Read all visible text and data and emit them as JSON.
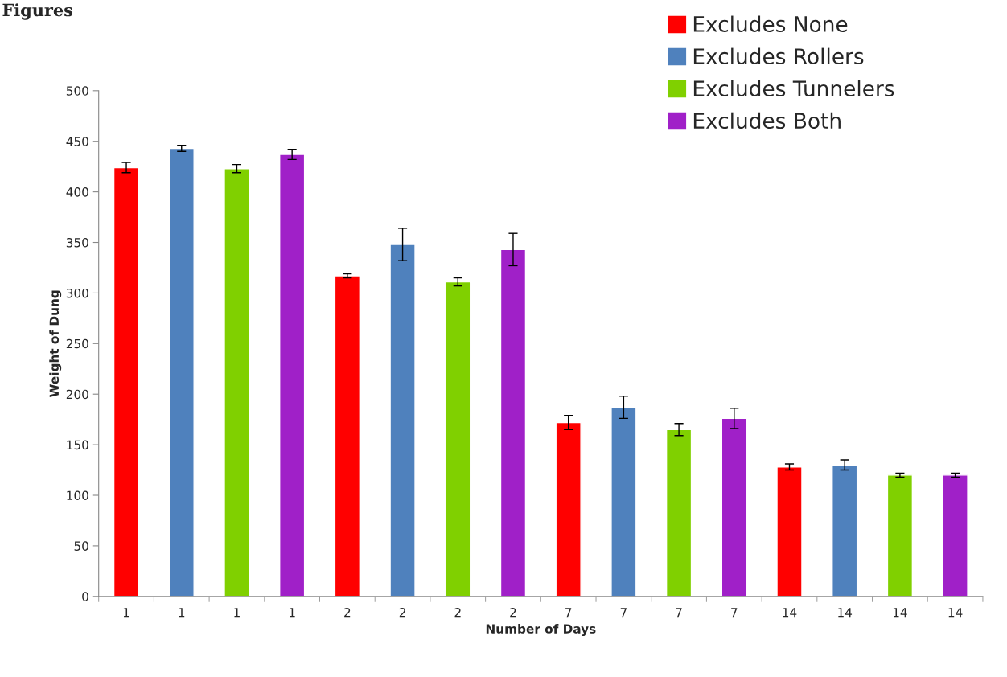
{
  "chart_data": {
    "type": "bar",
    "categories": [
      "1",
      "1",
      "1",
      "1",
      "2",
      "2",
      "2",
      "2",
      "7",
      "7",
      "7",
      "7",
      "14",
      "14",
      "14",
      "14"
    ],
    "xlabel": "Number of Days",
    "ylabel": "Weight of Dung",
    "annotations": [
      "Figures"
    ],
    "series": [
      {
        "name": "Excludes None",
        "color": "#ff0000",
        "values": [
          424,
          null,
          null,
          null,
          317,
          null,
          null,
          null,
          172,
          null,
          null,
          null,
          128,
          null,
          null,
          null
        ],
        "errors": [
          5,
          null,
          null,
          null,
          2,
          null,
          null,
          null,
          7,
          null,
          null,
          null,
          3,
          null,
          null,
          null
        ]
      },
      {
        "name": "Excludes Rollers",
        "color": "#4f81bd",
        "values": [
          null,
          443,
          null,
          null,
          null,
          348,
          null,
          null,
          null,
          187,
          null,
          null,
          null,
          130,
          null,
          null
        ],
        "errors": [
          null,
          3,
          null,
          null,
          null,
          16,
          null,
          null,
          null,
          11,
          null,
          null,
          null,
          5,
          null,
          null
        ]
      },
      {
        "name": "Excludes Tunnelers",
        "color": "#80d000",
        "values": [
          null,
          null,
          423,
          null,
          null,
          null,
          311,
          null,
          null,
          null,
          165,
          null,
          null,
          null,
          120,
          null
        ],
        "errors": [
          null,
          null,
          4,
          null,
          null,
          null,
          4,
          null,
          null,
          null,
          6,
          null,
          null,
          null,
          2,
          null
        ]
      },
      {
        "name": "Excludes Both",
        "color": "#a020c8",
        "values": [
          null,
          null,
          null,
          437,
          null,
          null,
          null,
          343,
          null,
          null,
          null,
          176,
          null,
          null,
          null,
          120
        ],
        "errors": [
          null,
          null,
          null,
          5,
          null,
          null,
          null,
          16,
          null,
          null,
          null,
          10,
          null,
          null,
          null,
          2
        ]
      }
    ],
    "ylim": [
      0,
      500
    ],
    "yticks": [
      0,
      50,
      100,
      150,
      200,
      250,
      300,
      350,
      400,
      450,
      500
    ],
    "grid": false,
    "legend": "top right"
  }
}
